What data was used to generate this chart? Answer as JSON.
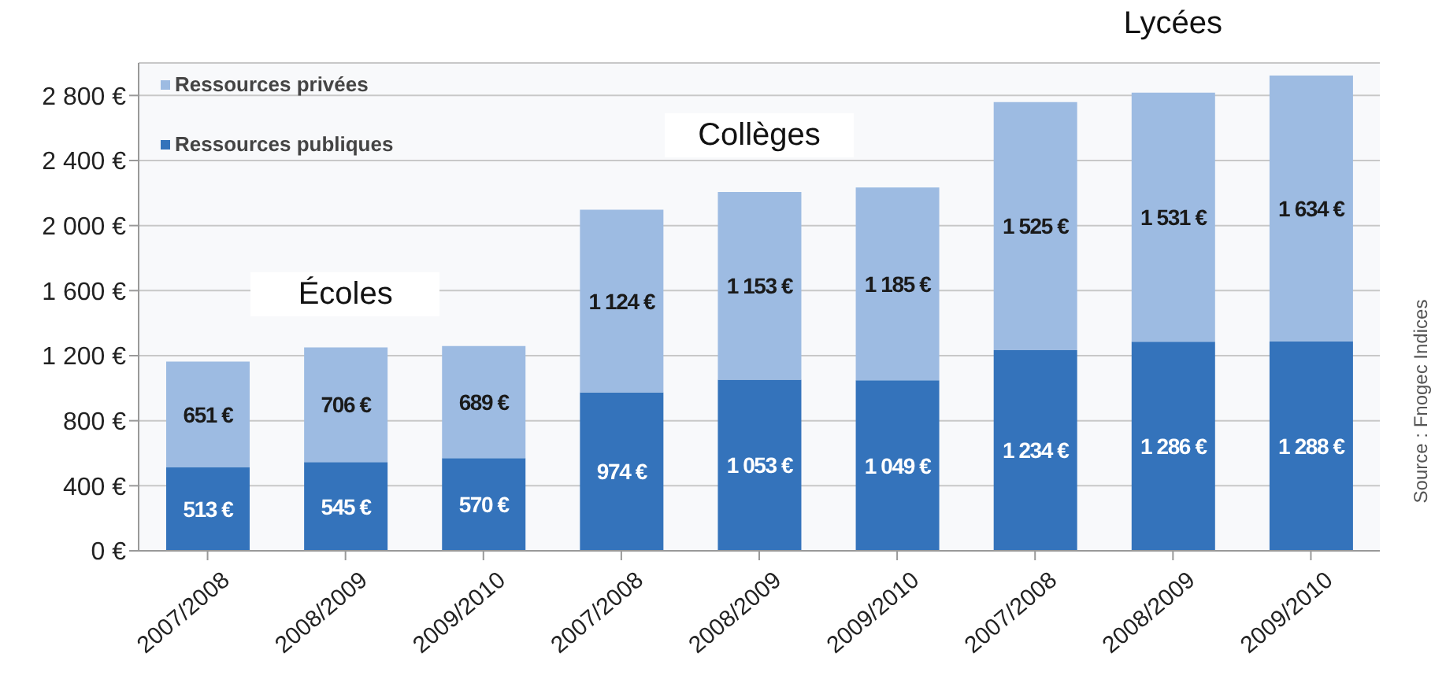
{
  "chart_data": {
    "type": "bar",
    "stacked": true,
    "categories": [
      "2007/2008",
      "2008/2009",
      "2009/2010",
      "2007/2008",
      "2008/2009",
      "2009/2010",
      "2007/2008",
      "2008/2009",
      "2009/2010"
    ],
    "series": [
      {
        "name": "Ressources publiques",
        "color": "#3473bb",
        "values": [
          513,
          545,
          570,
          974,
          1053,
          1049,
          1234,
          1286,
          1288
        ],
        "value_labels": [
          "513 €",
          "545 €",
          "570 €",
          "974 €",
          "1 053 €",
          "1 049 €",
          "1 234 €",
          "1 286 €",
          "1 288 €"
        ]
      },
      {
        "name": "Ressources privées",
        "color": "#9dbbe2",
        "values": [
          651,
          706,
          689,
          1124,
          1153,
          1185,
          1525,
          1531,
          1634
        ],
        "value_labels": [
          "651 €",
          "706 €",
          "689 €",
          "1 124 €",
          "1 153 €",
          "1 185 €",
          "1 525 €",
          "1 531 €",
          "1 634 €"
        ]
      }
    ],
    "ylim": [
      0,
      3000
    ],
    "yticks": [
      {
        "value": 0,
        "label": "0 €"
      },
      {
        "value": 400,
        "label": "400 €"
      },
      {
        "value": 800,
        "label": "800 €"
      },
      {
        "value": 1200,
        "label": "1 200 €"
      },
      {
        "value": 1600,
        "label": "1 600 €"
      },
      {
        "value": 2000,
        "label": "2 000 €"
      },
      {
        "value": 2400,
        "label": "2 400 €"
      },
      {
        "value": 2800,
        "label": "2 800 €"
      }
    ],
    "grid": "y",
    "legend": "top left",
    "annotations": [
      "Écoles",
      "Collèges",
      "Lycées",
      "Source : Fnogec Indices"
    ]
  }
}
